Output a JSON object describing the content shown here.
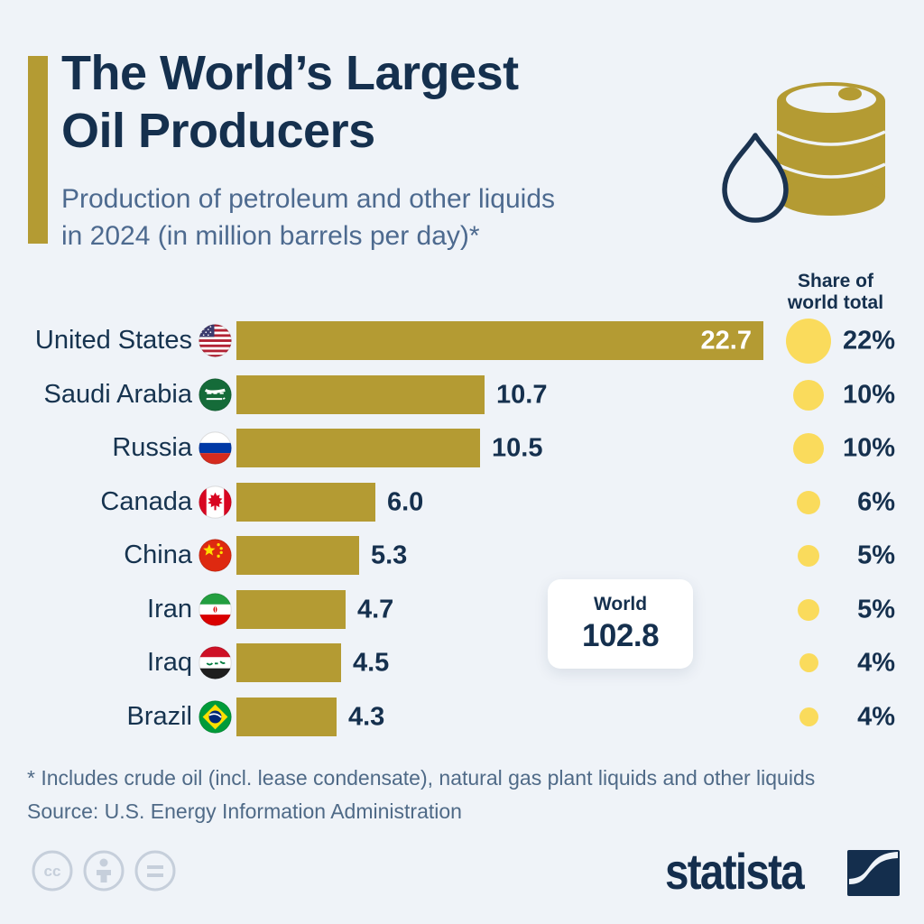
{
  "header": {
    "title_line1": "The World’s Largest",
    "title_line2": "Oil Producers",
    "subtitle_line1": "Production of petroleum and other liquids",
    "subtitle_line2": "in 2024 (in million barrels per day)*"
  },
  "chart_data": {
    "type": "bar",
    "orientation": "horizontal",
    "title": "The World’s Largest Oil Producers",
    "subtitle": "Production of petroleum and other liquids in 2024 (in million barrels per day)*",
    "unit": "million barrels per day",
    "xlim": [
      0,
      22.7
    ],
    "bar_color": "#B49B33",
    "bubble_color": "#FADB5C",
    "share_header_line1": "Share of",
    "share_header_line2": "world total",
    "categories": [
      "United States",
      "Saudi Arabia",
      "Russia",
      "Canada",
      "China",
      "Iran",
      "Iraq",
      "Brazil"
    ],
    "rows": [
      {
        "country": "United States",
        "flag": "us",
        "value": 22.7,
        "value_label": "22.7",
        "share_pct": 22,
        "share_label": "22%",
        "value_inside": true
      },
      {
        "country": "Saudi Arabia",
        "flag": "sa",
        "value": 10.7,
        "value_label": "10.7",
        "share_pct": 10,
        "share_label": "10%",
        "value_inside": false
      },
      {
        "country": "Russia",
        "flag": "ru",
        "value": 10.5,
        "value_label": "10.5",
        "share_pct": 10,
        "share_label": "10%",
        "value_inside": false
      },
      {
        "country": "Canada",
        "flag": "ca",
        "value": 6.0,
        "value_label": "6.0",
        "share_pct": 6,
        "share_label": "6%",
        "value_inside": false
      },
      {
        "country": "China",
        "flag": "cn",
        "value": 5.3,
        "value_label": "5.3",
        "share_pct": 5,
        "share_label": "5%",
        "value_inside": false
      },
      {
        "country": "Iran",
        "flag": "ir",
        "value": 4.7,
        "value_label": "4.7",
        "share_pct": 5,
        "share_label": "5%",
        "value_inside": false
      },
      {
        "country": "Iraq",
        "flag": "iq",
        "value": 4.5,
        "value_label": "4.5",
        "share_pct": 4,
        "share_label": "4%",
        "value_inside": false
      },
      {
        "country": "Brazil",
        "flag": "br",
        "value": 4.3,
        "value_label": "4.3",
        "share_pct": 4,
        "share_label": "4%",
        "value_inside": false
      }
    ],
    "world": {
      "label": "World",
      "value": 102.8,
      "value_label": "102.8"
    }
  },
  "footer": {
    "footnote": "* Includes crude oil (incl. lease condensate), natural gas plant liquids and other liquids",
    "source": "Source: U.S. Energy Information Administration",
    "brand": "statista"
  },
  "colors": {
    "background": "#EFF3F8",
    "navy": "#15304E",
    "subtitle": "#4D6A8F",
    "bar_gold": "#B49B33",
    "bubble_yellow": "#FADB5C",
    "footnote_gray": "#4F6A87"
  }
}
